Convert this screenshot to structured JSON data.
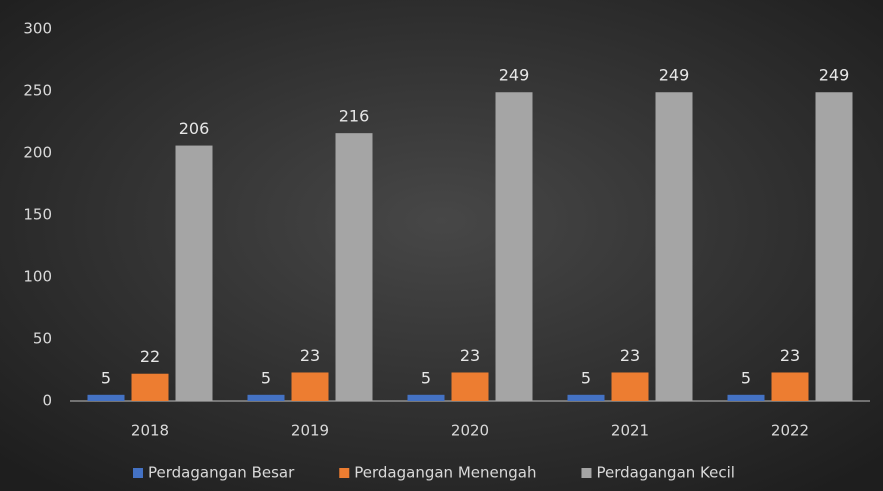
{
  "chart_data": {
    "type": "bar",
    "categories": [
      "2018",
      "2019",
      "2020",
      "2021",
      "2022"
    ],
    "series": [
      {
        "name": "Perdagangan Besar",
        "color": "#4472c4",
        "values": [
          5,
          5,
          5,
          5,
          5
        ]
      },
      {
        "name": "Perdagangan Menengah",
        "color": "#ed7d31",
        "values": [
          22,
          23,
          23,
          23,
          23
        ]
      },
      {
        "name": "Perdagangan Kecil",
        "color": "#a5a5a5",
        "values": [
          206,
          216,
          249,
          249,
          249
        ]
      }
    ],
    "ylim": [
      0,
      300
    ],
    "yticks": [
      0,
      50,
      100,
      150,
      200,
      250,
      300
    ],
    "grid": false,
    "legend": "bottom"
  }
}
